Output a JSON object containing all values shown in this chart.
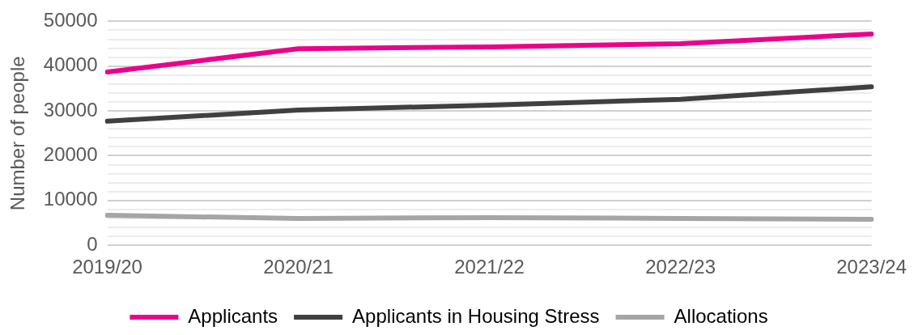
{
  "chart_data": {
    "type": "line",
    "ylabel": "Number of people",
    "categories": [
      "2019/20",
      "2020/21",
      "2021/22",
      "2022/23",
      "2023/24"
    ],
    "series": [
      {
        "name": "Applicants",
        "color": "#ec008c",
        "values": [
          38700,
          43900,
          44300,
          45000,
          47200
        ]
      },
      {
        "name": "Applicants in Housing Stress",
        "color": "#404040",
        "values": [
          27700,
          30200,
          31300,
          32600,
          35400
        ]
      },
      {
        "name": "Allocations",
        "color": "#a5a5a5",
        "values": [
          6700,
          6000,
          6200,
          6000,
          5800
        ]
      }
    ],
    "ylim": [
      0,
      50000
    ],
    "yticks": [
      0,
      {
        "value": 2000,
        "label": null
      },
      {
        "value": 4000,
        "label": null
      },
      {
        "value": 6000,
        "label": null
      },
      {
        "value": 8000,
        "label": null
      },
      10000,
      {
        "value": 12000,
        "label": null
      },
      {
        "value": 14000,
        "label": null
      },
      {
        "value": 16000,
        "label": null
      },
      {
        "value": 18000,
        "label": null
      },
      20000,
      {
        "value": 22000,
        "label": null
      },
      {
        "value": 24000,
        "label": null
      },
      {
        "value": 26000,
        "label": null
      },
      {
        "value": 28000,
        "label": null
      },
      30000,
      {
        "value": 32000,
        "label": null
      },
      {
        "value": 34000,
        "label": null
      },
      {
        "value": 36000,
        "label": null
      },
      {
        "value": 38000,
        "label": null
      },
      40000,
      {
        "value": 42000,
        "label": null
      },
      {
        "value": 44000,
        "label": null
      },
      {
        "value": 46000,
        "label": null
      },
      {
        "value": 48000,
        "label": null
      },
      50000
    ],
    "grid": "y",
    "legend": "bottom",
    "marker": "none",
    "line_style": "solid"
  }
}
